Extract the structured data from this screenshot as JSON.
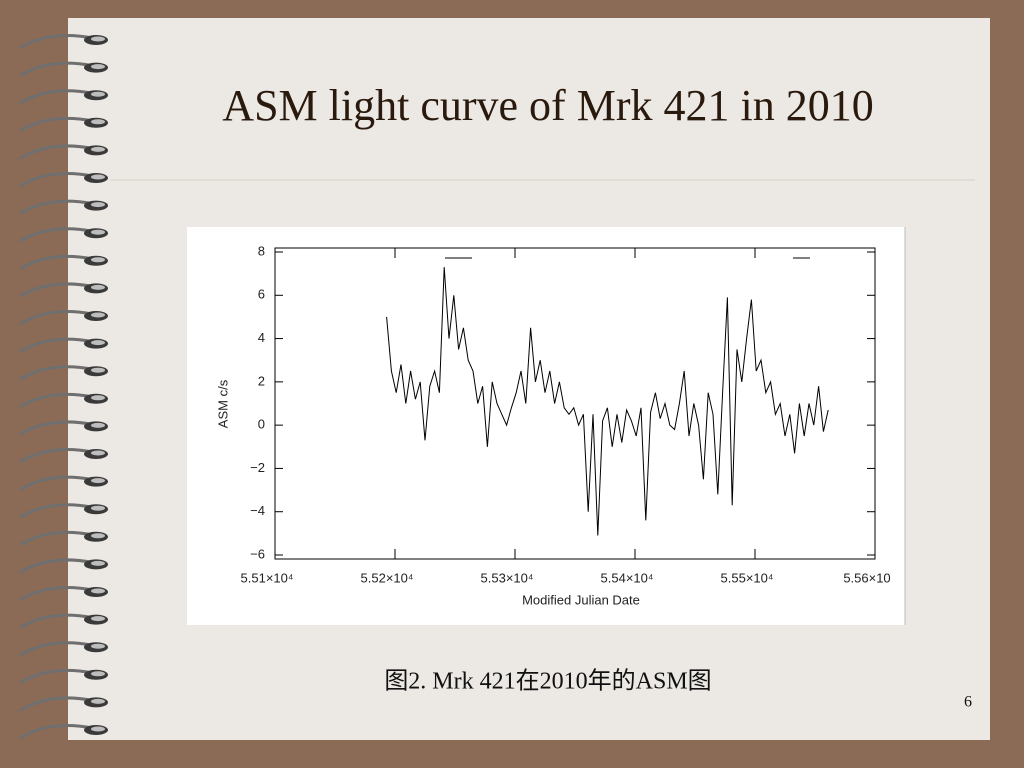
{
  "slide_title": "ASM light curve of Mrk 421 in 2010",
  "caption": "图2. Mrk 421在2010年的ASM图",
  "page_number": "6",
  "chart_data": {
    "type": "line",
    "xlabel": "Modified Julian Date",
    "ylabel": "ASM c/s",
    "xlim": [
      55100,
      55600
    ],
    "ylim": [
      -6,
      8
    ],
    "xticks": [
      {
        "value": 55100,
        "label": "5.51×10⁴"
      },
      {
        "value": 55200,
        "label": "5.52×10⁴"
      },
      {
        "value": 55300,
        "label": "5.53×10⁴"
      },
      {
        "value": 55400,
        "label": "5.54×10⁴"
      },
      {
        "value": 55500,
        "label": "5.55×10⁴"
      },
      {
        "value": 55600,
        "label": "5.56×10"
      }
    ],
    "yticks": [
      {
        "value": -6,
        "label": "−6"
      },
      {
        "value": -4,
        "label": "−4"
      },
      {
        "value": -2,
        "label": "−2"
      },
      0,
      2,
      4,
      6,
      8
    ],
    "color": "#000000",
    "x": [
      55193,
      55197,
      55201,
      55205,
      55209,
      55213,
      55217,
      55221,
      55225,
      55229,
      55233,
      55237,
      55241,
      55245,
      55249,
      55253,
      55257,
      55261,
      55265,
      55269,
      55273,
      55277,
      55281,
      55285,
      55289,
      55293,
      55297,
      55301,
      55305,
      55309,
      55313,
      55317,
      55321,
      55325,
      55329,
      55333,
      55337,
      55341,
      55345,
      55349,
      55353,
      55357,
      55361,
      55365,
      55369,
      55373,
      55377,
      55381,
      55385,
      55389,
      55393,
      55397,
      55401,
      55405,
      55409,
      55413,
      55417,
      55421,
      55425,
      55429,
      55433,
      55437,
      55441,
      55445,
      55449,
      55453,
      55457,
      55461,
      55465,
      55469,
      55473,
      55477,
      55481,
      55485,
      55489,
      55493,
      55497,
      55501,
      55505,
      55509,
      55513,
      55517,
      55521,
      55525,
      55529,
      55533,
      55537,
      55541,
      55545,
      55549,
      55553,
      55557,
      55561
    ],
    "values": [
      5.0,
      2.5,
      1.5,
      2.8,
      1.0,
      2.5,
      1.2,
      2.0,
      -0.7,
      1.8,
      2.5,
      1.5,
      7.3,
      4.0,
      6.0,
      3.5,
      4.5,
      3.0,
      2.5,
      1.0,
      1.8,
      -1.0,
      2.0,
      1.0,
      0.5,
      0.0,
      0.8,
      1.5,
      2.5,
      1.0,
      4.5,
      2.0,
      3.0,
      1.5,
      2.5,
      1.0,
      2.0,
      0.8,
      0.5,
      0.8,
      0.0,
      0.5,
      -4.0,
      0.5,
      -5.1,
      0.2,
      0.8,
      -1.0,
      0.5,
      -0.8,
      0.7,
      0.2,
      -0.5,
      0.8,
      -4.4,
      0.6,
      1.5,
      0.3,
      1.0,
      0.0,
      -0.2,
      1.0,
      2.5,
      -0.5,
      1.0,
      0.0,
      -2.5,
      1.5,
      0.5,
      -3.2,
      1.5,
      5.9,
      -3.7,
      3.5,
      2.0,
      4.0,
      5.8,
      2.5,
      3.0,
      1.5,
      2.0,
      0.5,
      1.0,
      -0.5,
      0.5,
      -1.3,
      1.0,
      -0.5,
      1.0,
      0.0,
      1.8,
      -0.3,
      0.7
    ]
  }
}
